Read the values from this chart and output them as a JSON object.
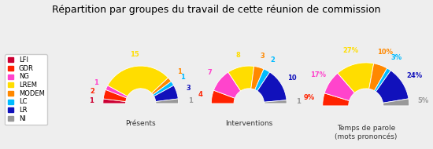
{
  "title": "Répartition par groupes du travail de cette réunion de commission",
  "groups": [
    "LFI",
    "GDR",
    "NG",
    "LREM",
    "MODEM",
    "LC",
    "LR",
    "NI"
  ],
  "colors": [
    "#cc0033",
    "#ff2200",
    "#ff44cc",
    "#ffdd00",
    "#ff8800",
    "#00bbff",
    "#1111bb",
    "#999999"
  ],
  "presentes": [
    1,
    2,
    1,
    15,
    1,
    1,
    3,
    1
  ],
  "interventions": [
    0,
    4,
    7,
    8,
    3,
    2,
    10,
    1
  ],
  "temps_parole_pct": [
    0,
    9,
    17,
    27,
    10,
    3,
    24,
    5
  ],
  "subtitle1": "Présents",
  "subtitle2": "Interventions",
  "subtitle3": "Temps de parole\n(mots prononcés)",
  "background_color": "#eeeeee",
  "legend_background": "#ffffff",
  "title_fontsize": 9,
  "legend_fontsize": 6,
  "label_fontsize": 6,
  "subtitle_fontsize": 6.5
}
